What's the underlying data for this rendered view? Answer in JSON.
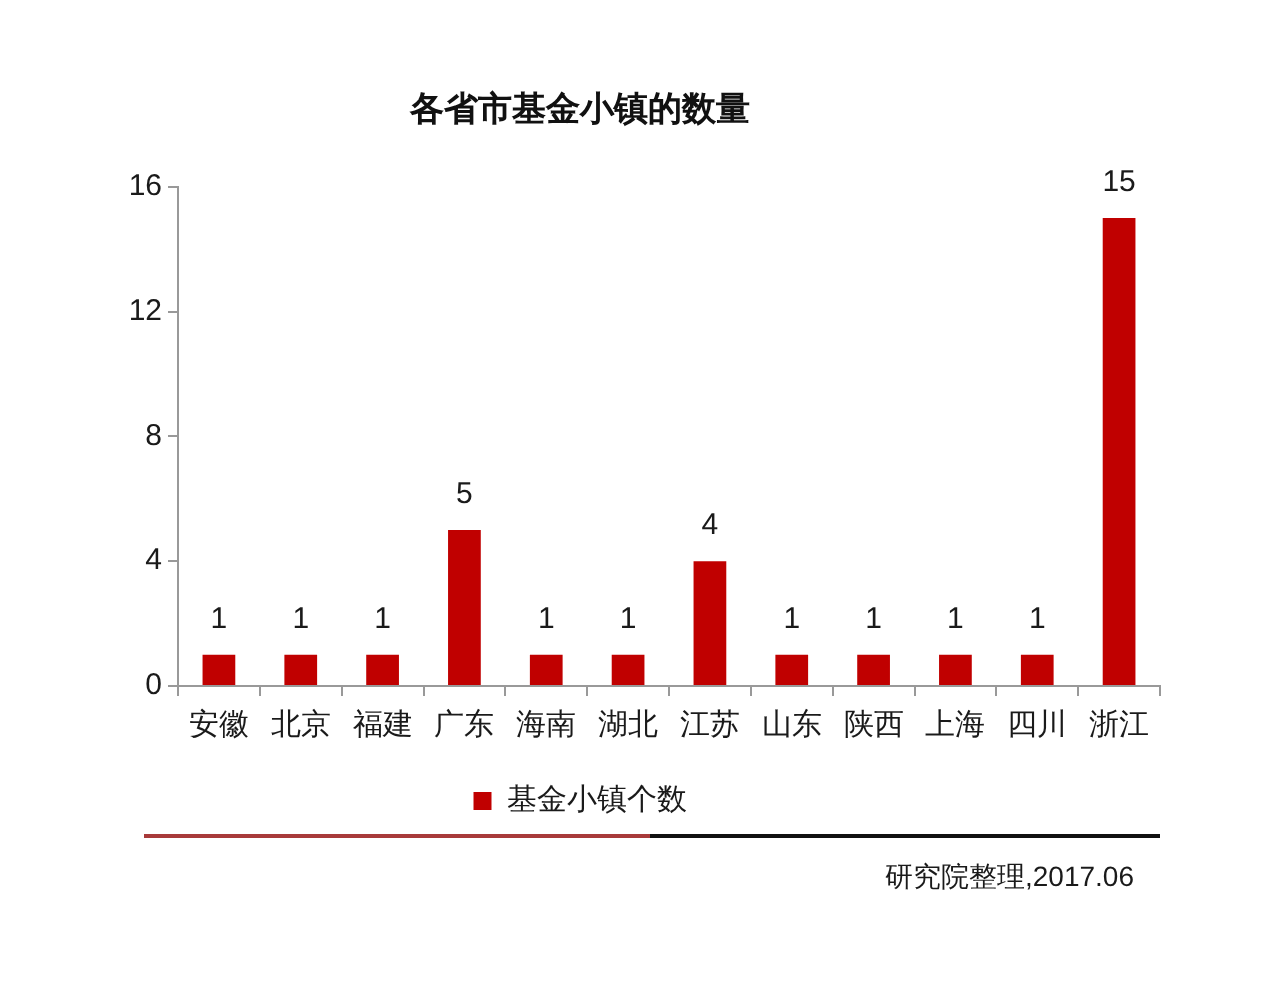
{
  "chart_data": {
    "type": "bar",
    "title": "各省市基金小镇的数量",
    "categories": [
      "安徽",
      "北京",
      "福建",
      "广东",
      "海南",
      "湖北",
      "江苏",
      "山东",
      "陕西",
      "上海",
      "四川",
      "浙江"
    ],
    "series": [
      {
        "name": "基金小镇个数",
        "color": "#c00000",
        "values": [
          1,
          1,
          1,
          5,
          1,
          1,
          4,
          1,
          1,
          1,
          1,
          15
        ]
      }
    ],
    "ylim": [
      0,
      16
    ],
    "yticks": [
      0,
      4,
      8,
      12,
      16
    ],
    "grid": false,
    "legend": "bottom",
    "data_labels": true,
    "annotations": [
      "研究院整理,2017.06"
    ]
  }
}
